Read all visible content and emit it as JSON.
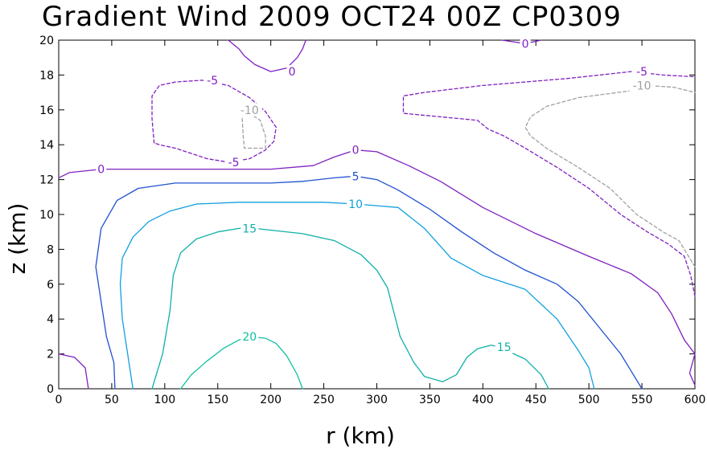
{
  "chart_data": {
    "type": "contour",
    "title": "Gradient Wind 2009 OCT24 00Z   CP0309",
    "xlabel": "r (km)",
    "ylabel": "z (km)",
    "xlim": [
      0,
      600
    ],
    "ylim": [
      0,
      20
    ],
    "x_ticks": [
      0,
      50,
      100,
      150,
      200,
      250,
      300,
      350,
      400,
      450,
      500,
      550,
      600
    ],
    "y_ticks": [
      0,
      2,
      4,
      6,
      8,
      10,
      12,
      14,
      16,
      18,
      20
    ],
    "grid": false,
    "contours": [
      {
        "level": 20,
        "label": "20",
        "color": "#10c0a0",
        "dashed": false,
        "paths": [
          [
            [
              115,
              0
            ],
            [
              125,
              0.8
            ],
            [
              140,
              1.6
            ],
            [
              155,
              2.3
            ],
            [
              170,
              2.8
            ],
            [
              180,
              3.0
            ],
            [
              195,
              2.9
            ],
            [
              205,
              2.6
            ],
            [
              215,
              1.9
            ],
            [
              225,
              0.8
            ],
            [
              230,
              0
            ]
          ]
        ],
        "labels": [
          {
            "text": "20",
            "x": 180,
            "y": 3.0
          }
        ]
      },
      {
        "level": 15,
        "label": "15",
        "color": "#10b0a8",
        "dashed": false,
        "paths": [
          [
            [
              88,
              0
            ],
            [
              98,
              2.0
            ],
            [
              105,
              4.5
            ],
            [
              108,
              6.5
            ],
            [
              115,
              7.8
            ],
            [
              130,
              8.6
            ],
            [
              150,
              9.0
            ],
            [
              170,
              9.2
            ],
            [
              185,
              9.2
            ],
            [
              230,
              8.9
            ],
            [
              260,
              8.5
            ],
            [
              285,
              7.7
            ],
            [
              300,
              6.8
            ],
            [
              310,
              5.8
            ],
            [
              322,
              3.0
            ],
            [
              335,
              1.5
            ],
            [
              345,
              0.7
            ],
            [
              362,
              0.4
            ],
            [
              375,
              0.8
            ],
            [
              385,
              1.8
            ],
            [
              395,
              2.3
            ],
            [
              408,
              2.5
            ],
            [
              415,
              2.4
            ],
            [
              440,
              1.7
            ],
            [
              455,
              0.8
            ],
            [
              462,
              0
            ]
          ]
        ],
        "labels": [
          {
            "text": "15",
            "x": 180,
            "y": 9.2
          },
          {
            "text": "15",
            "x": 420,
            "y": 2.4
          }
        ]
      },
      {
        "level": 10,
        "label": "10",
        "color": "#10a0e0",
        "dashed": false,
        "paths": [
          [
            [
              70,
              0
            ],
            [
              65,
              2.0
            ],
            [
              60,
              4.0
            ],
            [
              58,
              6.0
            ],
            [
              60,
              7.5
            ],
            [
              70,
              8.7
            ],
            [
              85,
              9.6
            ],
            [
              105,
              10.2
            ],
            [
              130,
              10.6
            ],
            [
              170,
              10.7
            ],
            [
              250,
              10.7
            ],
            [
              280,
              10.6
            ],
            [
              300,
              10.5
            ],
            [
              320,
              10.4
            ],
            [
              345,
              9.2
            ],
            [
              370,
              7.5
            ],
            [
              400,
              6.5
            ],
            [
              440,
              5.7
            ],
            [
              470,
              4.0
            ],
            [
              490,
              2.2
            ],
            [
              500,
              1.2
            ],
            [
              505,
              0
            ]
          ]
        ],
        "labels": [
          {
            "text": "10",
            "x": 280,
            "y": 10.6
          }
        ]
      },
      {
        "level": 5,
        "label": "5",
        "color": "#2050d0",
        "dashed": false,
        "paths": [
          [
            [
              53,
              0
            ],
            [
              52,
              1.5
            ],
            [
              45,
              3.0
            ],
            [
              40,
              5.0
            ],
            [
              35,
              7.0
            ],
            [
              40,
              9.2
            ],
            [
              55,
              10.8
            ],
            [
              75,
              11.5
            ],
            [
              110,
              11.8
            ],
            [
              200,
              11.8
            ],
            [
              230,
              11.9
            ],
            [
              260,
              12.1
            ],
            [
              280,
              12.2
            ],
            [
              300,
              12.0
            ],
            [
              320,
              11.4
            ],
            [
              350,
              10.3
            ],
            [
              380,
              9.0
            ],
            [
              410,
              7.8
            ],
            [
              440,
              6.8
            ],
            [
              470,
              6.0
            ],
            [
              490,
              5.0
            ],
            [
              510,
              3.5
            ],
            [
              530,
              2.0
            ],
            [
              540,
              1.0
            ],
            [
              550,
              0
            ]
          ]
        ],
        "labels": [
          {
            "text": "5",
            "x": 280,
            "y": 12.2
          }
        ]
      },
      {
        "level": 0,
        "label": "0",
        "color": "#8020c0",
        "dashed": false,
        "paths": [
          [
            [
              0,
              2.0
            ],
            [
              15,
              1.8
            ],
            [
              25,
              1.2
            ],
            [
              28,
              0
            ]
          ],
          [
            [
              0,
              12.1
            ],
            [
              10,
              12.4
            ],
            [
              40,
              12.6
            ],
            [
              120,
              12.6
            ],
            [
              200,
              12.6
            ],
            [
              240,
              12.8
            ],
            [
              260,
              13.3
            ],
            [
              280,
              13.7
            ],
            [
              300,
              13.6
            ],
            [
              330,
              12.8
            ],
            [
              360,
              11.9
            ],
            [
              400,
              10.4
            ],
            [
              450,
              8.9
            ],
            [
              500,
              7.6
            ],
            [
              540,
              6.6
            ],
            [
              565,
              5.5
            ],
            [
              578,
              4.3
            ],
            [
              590,
              2.8
            ],
            [
              600,
              2.0
            ],
            [
              595,
              0.9
            ],
            [
              600,
              0.2
            ]
          ],
          [
            [
              160,
              20
            ],
            [
              170,
              19.5
            ],
            [
              175,
              19.1
            ],
            [
              185,
              18.6
            ],
            [
              200,
              18.2
            ],
            [
              215,
              18.4
            ],
            [
              225,
              19.0
            ],
            [
              230,
              19.5
            ],
            [
              233,
              20
            ]
          ],
          [
            [
              418,
              20
            ],
            [
              440,
              19.8
            ],
            [
              455,
              20
            ]
          ]
        ],
        "labels": [
          {
            "text": "0",
            "x": 40,
            "y": 12.6
          },
          {
            "text": "0",
            "x": 280,
            "y": 13.7
          },
          {
            "text": "0",
            "x": 220,
            "y": 18.2
          },
          {
            "text": "0",
            "x": 440,
            "y": 19.8
          }
        ]
      },
      {
        "level": -5,
        "label": "-5",
        "color": "#8020c0",
        "dashed": true,
        "paths": [
          [
            [
              90,
              14.1
            ],
            [
              88,
              15.5
            ],
            [
              88,
              16.8
            ],
            [
              95,
              17.4
            ],
            [
              110,
              17.6
            ],
            [
              135,
              17.7
            ],
            [
              160,
              17.4
            ],
            [
              180,
              16.7
            ],
            [
              195,
              15.9
            ],
            [
              205,
              15.0
            ],
            [
              203,
              14.2
            ],
            [
              195,
              13.7
            ],
            [
              180,
              13.2
            ],
            [
              160,
              13.0
            ],
            [
              140,
              13.2
            ],
            [
              125,
              13.5
            ],
            [
              110,
              13.8
            ],
            [
              95,
              14.0
            ],
            [
              90,
              14.1
            ]
          ],
          [
            [
              600,
              5.3
            ],
            [
              596,
              6.5
            ],
            [
              590,
              7.6
            ],
            [
              575,
              8.3
            ],
            [
              555,
              9.0
            ],
            [
              530,
              10.0
            ],
            [
              500,
              11.5
            ],
            [
              470,
              12.7
            ],
            [
              440,
              13.8
            ],
            [
              420,
              14.5
            ],
            [
              405,
              14.9
            ],
            [
              395,
              15.4
            ],
            [
              325,
              15.8
            ],
            [
              325,
              16.8
            ],
            [
              345,
              17.0
            ],
            [
              400,
              17.4
            ],
            [
              480,
              17.8
            ],
            [
              540,
              18.2
            ],
            [
              570,
              18.0
            ],
            [
              600,
              17.9
            ]
          ]
        ],
        "labels": [
          {
            "text": "-5",
            "x": 145,
            "y": 17.7
          },
          {
            "text": "-5",
            "x": 165,
            "y": 13.0
          },
          {
            "text": "-5",
            "x": 550,
            "y": 18.2
          }
        ]
      },
      {
        "level": -10,
        "label": "-10",
        "color": "#a0a0a0",
        "dashed": true,
        "paths": [
          [
            [
              175,
              16.0
            ],
            [
              190,
              15.4
            ],
            [
              195,
              14.5
            ],
            [
              195,
              13.8
            ],
            [
              175,
              13.8
            ],
            [
              174,
              14.5
            ],
            [
              173,
              15.5
            ],
            [
              175,
              16.0
            ]
          ],
          [
            [
              600,
              7.0
            ],
            [
              595,
              7.5
            ],
            [
              585,
              8.5
            ],
            [
              570,
              9.0
            ],
            [
              545,
              10.0
            ],
            [
              520,
              11.5
            ],
            [
              490,
              12.7
            ],
            [
              460,
              13.8
            ],
            [
              445,
              14.5
            ],
            [
              440,
              15.0
            ],
            [
              445,
              15.6
            ],
            [
              460,
              16.2
            ],
            [
              490,
              16.7
            ],
            [
              540,
              17.1
            ],
            [
              555,
              17.4
            ],
            [
              580,
              17.3
            ],
            [
              600,
              17.0
            ]
          ]
        ],
        "labels": [
          {
            "text": "-10",
            "x": 180,
            "y": 16.0
          },
          {
            "text": "-10",
            "x": 550,
            "y": 17.4
          }
        ]
      }
    ]
  }
}
